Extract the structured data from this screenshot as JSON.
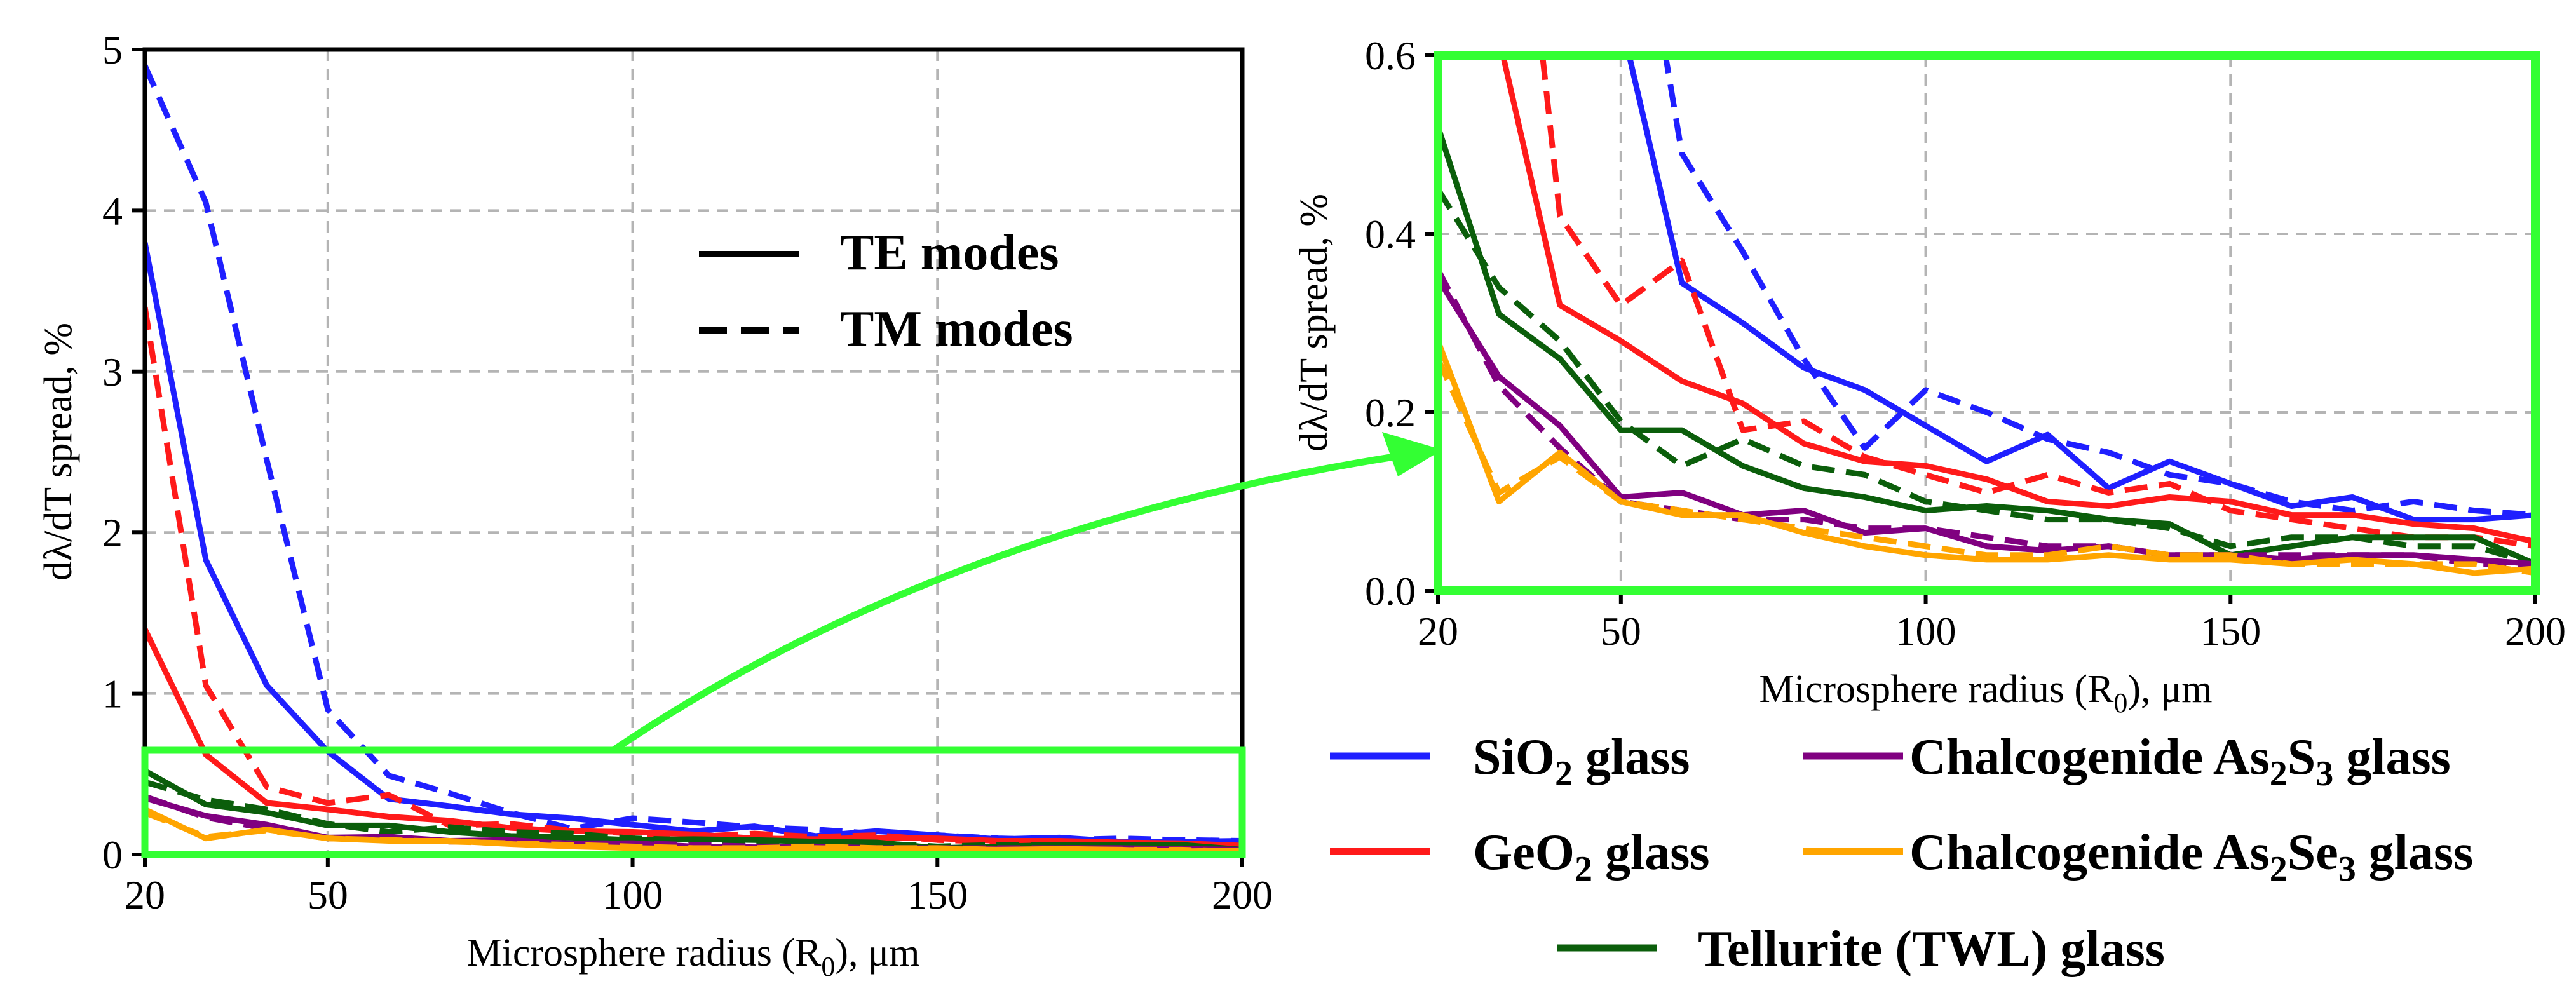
{
  "colors": {
    "sio2": "#1f1fff",
    "geo2": "#ff1a1a",
    "as2s3": "#800080",
    "as2se3": "#ffa500",
    "twl": "#0b5e0b",
    "zoom_box": "#33ff33"
  },
  "axes": {
    "xlabel_pre": "Microsphere radius (R",
    "xlabel_sub": "0",
    "xlabel_post": "), μm",
    "ylabel": "dλ/dT spread, %"
  },
  "mode_legend": {
    "te": "TE modes",
    "tm": "TM modes"
  },
  "material_legend": [
    {
      "key": "sio2",
      "pre": "SiO",
      "sub": "2",
      "post": " glass"
    },
    {
      "key": "as2s3",
      "pre": "Chalcogenide As",
      "sub": "2",
      "mid": "S",
      "sub2": "3",
      "post": " glass"
    },
    {
      "key": "geo2",
      "pre": "GeO",
      "sub": "2",
      "post": " glass"
    },
    {
      "key": "as2se3",
      "pre": "Chalcogenide As",
      "sub": "2",
      "mid": "Se",
      "sub2": "3",
      "post": " glass"
    },
    {
      "key": "twl",
      "pre": "Tellurite (TWL) glass"
    }
  ],
  "chart_data": [
    {
      "type": "line",
      "panel": "full",
      "xlim": [
        20,
        200
      ],
      "ylim": [
        0,
        5
      ],
      "xticks": [
        20,
        50,
        100,
        150,
        200
      ],
      "yticks": [
        0,
        1,
        2,
        3,
        4,
        5
      ],
      "xgrid": [
        50,
        100,
        150
      ],
      "ygrid": [
        1,
        2,
        3,
        4
      ],
      "zoom_region": {
        "x": [
          20,
          200
        ],
        "y": [
          0,
          0.6
        ]
      }
    },
    {
      "type": "line",
      "panel": "zoom",
      "xlim": [
        20,
        200
      ],
      "ylim": [
        0,
        0.6
      ],
      "xticks": [
        20,
        50,
        100,
        150,
        200
      ],
      "yticks": [
        "0.0",
        "0.2",
        "0.4",
        "0.6"
      ],
      "yvals": [
        0,
        0.2,
        0.4,
        0.6
      ],
      "xgrid": [
        50,
        100,
        150
      ],
      "ygrid": [
        0.2,
        0.4
      ]
    }
  ],
  "series": {
    "x": [
      20,
      30,
      40,
      50,
      60,
      70,
      80,
      90,
      100,
      110,
      120,
      130,
      140,
      150,
      160,
      170,
      180,
      190,
      200
    ],
    "list": [
      {
        "name": "SiO2 TE",
        "material": "sio2",
        "mode": "TE",
        "values": [
          3.8,
          1.83,
          1.05,
          0.64,
          0.345,
          0.3,
          0.25,
          0.225,
          0.185,
          0.145,
          0.175,
          0.115,
          0.145,
          0.12,
          0.095,
          0.105,
          0.08,
          0.08,
          0.085
        ]
      },
      {
        "name": "SiO2 TM",
        "material": "sio2",
        "mode": "TM",
        "values": [
          4.9,
          4.05,
          2.45,
          0.9,
          0.49,
          0.38,
          0.26,
          0.16,
          0.225,
          0.2,
          0.17,
          0.155,
          0.13,
          0.12,
          0.1,
          0.09,
          0.1,
          0.09,
          0.085
        ]
      },
      {
        "name": "GeO2 TE",
        "material": "geo2",
        "mode": "TE",
        "values": [
          1.4,
          0.62,
          0.32,
          0.28,
          0.235,
          0.21,
          0.165,
          0.145,
          0.14,
          0.125,
          0.1,
          0.095,
          0.105,
          0.1,
          0.085,
          0.085,
          0.075,
          0.07,
          0.055
        ]
      },
      {
        "name": "GeO2 TM",
        "material": "geo2",
        "mode": "TM",
        "values": [
          3.4,
          1.05,
          0.42,
          0.32,
          0.37,
          0.18,
          0.19,
          0.15,
          0.13,
          0.11,
          0.13,
          0.11,
          0.12,
          0.09,
          0.08,
          0.07,
          0.06,
          0.06,
          0.05
        ]
      },
      {
        "name": "TWL TE",
        "material": "twl",
        "mode": "TE",
        "values": [
          0.52,
          0.31,
          0.26,
          0.18,
          0.18,
          0.14,
          0.115,
          0.105,
          0.09,
          0.095,
          0.09,
          0.08,
          0.075,
          0.04,
          0.05,
          0.06,
          0.06,
          0.06,
          0.03
        ]
      },
      {
        "name": "TWL TM",
        "material": "twl",
        "mode": "TM",
        "values": [
          0.45,
          0.34,
          0.28,
          0.19,
          0.14,
          0.17,
          0.14,
          0.13,
          0.1,
          0.09,
          0.08,
          0.08,
          0.07,
          0.05,
          0.06,
          0.06,
          0.05,
          0.05,
          0.03
        ]
      },
      {
        "name": "As2S3 TE",
        "material": "as2s3",
        "mode": "TE",
        "values": [
          0.35,
          0.24,
          0.185,
          0.105,
          0.11,
          0.085,
          0.09,
          0.065,
          0.07,
          0.05,
          0.045,
          0.05,
          0.04,
          0.04,
          0.035,
          0.04,
          0.04,
          0.035,
          0.03
        ]
      },
      {
        "name": "As2S3 TM",
        "material": "as2s3",
        "mode": "TM",
        "values": [
          0.36,
          0.23,
          0.16,
          0.1,
          0.09,
          0.08,
          0.08,
          0.07,
          0.07,
          0.06,
          0.05,
          0.05,
          0.04,
          0.04,
          0.04,
          0.04,
          0.04,
          0.03,
          0.03
        ]
      },
      {
        "name": "As2Se3 TE",
        "material": "as2se3",
        "mode": "TE",
        "values": [
          0.28,
          0.1,
          0.155,
          0.1,
          0.085,
          0.085,
          0.065,
          0.05,
          0.04,
          0.035,
          0.035,
          0.04,
          0.035,
          0.035,
          0.03,
          0.035,
          0.03,
          0.02,
          0.025
        ]
      },
      {
        "name": "As2Se3 TM",
        "material": "as2se3",
        "mode": "TM",
        "values": [
          0.26,
          0.11,
          0.15,
          0.1,
          0.09,
          0.08,
          0.07,
          0.06,
          0.05,
          0.04,
          0.04,
          0.05,
          0.04,
          0.04,
          0.03,
          0.03,
          0.03,
          0.03,
          0.02
        ]
      }
    ]
  }
}
